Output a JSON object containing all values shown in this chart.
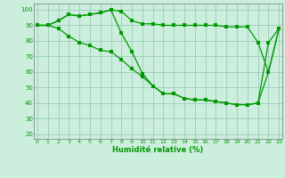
{
  "x": [
    0,
    1,
    2,
    3,
    4,
    5,
    6,
    7,
    8,
    9,
    10,
    11,
    12,
    13,
    14,
    15,
    16,
    17,
    18,
    19,
    20,
    21,
    22,
    23
  ],
  "line1": [
    90,
    90,
    93,
    97,
    96,
    97,
    98,
    100,
    99,
    93,
    91,
    91,
    90,
    90,
    90,
    90,
    90,
    90,
    89,
    89,
    89,
    79,
    60,
    88
  ],
  "line2": [
    90,
    90,
    93,
    97,
    96,
    97,
    98,
    100,
    85,
    73,
    59,
    51,
    46,
    46,
    43,
    42,
    42,
    41,
    40,
    39,
    39,
    40,
    60,
    88
  ],
  "line3": [
    90,
    90,
    88,
    83,
    79,
    77,
    74,
    73,
    68,
    62,
    57,
    51,
    46,
    46,
    43,
    42,
    42,
    41,
    40,
    39,
    39,
    40,
    79,
    88
  ],
  "bg_color": "#cceedd",
  "grid_color": "#99ccbb",
  "line_color": "#009900",
  "xlabel": "Humidité relative (%)",
  "xlabel_color": "#009900",
  "tick_color": "#009900",
  "ylim": [
    17,
    104
  ],
  "xlim": [
    -0.3,
    23.3
  ],
  "yticks": [
    20,
    30,
    40,
    50,
    60,
    70,
    80,
    90,
    100
  ],
  "xticks": [
    0,
    1,
    2,
    3,
    4,
    5,
    6,
    7,
    8,
    9,
    10,
    11,
    12,
    13,
    14,
    15,
    16,
    17,
    18,
    19,
    20,
    21,
    22,
    23
  ]
}
